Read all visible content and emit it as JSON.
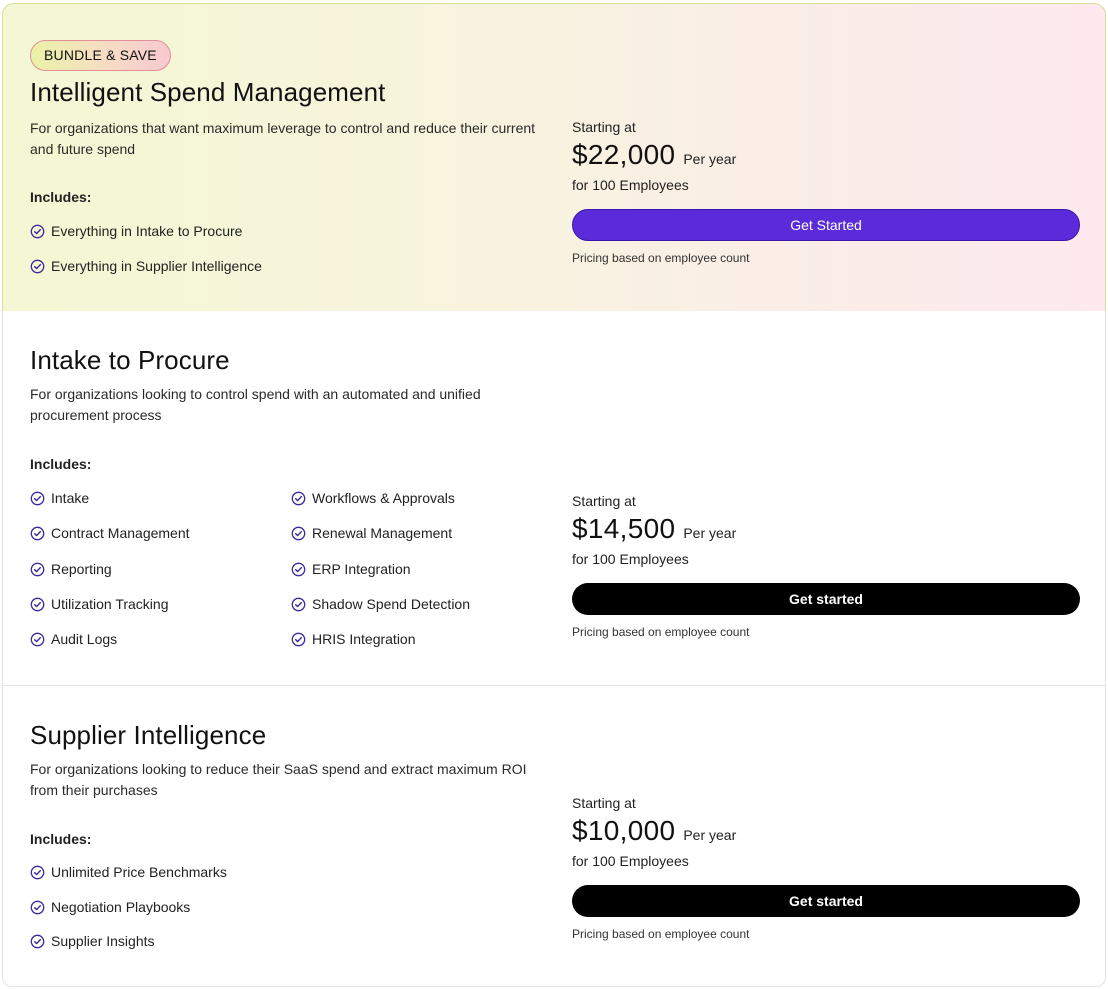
{
  "plans": [
    {
      "badge": "BUNDLE & SAVE",
      "title": "Intelligent Spend Management",
      "description": "For organizations that want maximum leverage to control and reduce their current and future spend",
      "includes_label": "Includes:",
      "features": [
        "Everything in Intake to Procure",
        "Everything in Supplier Intelligence"
      ],
      "starting_label": "Starting at",
      "price": "$22,000",
      "period": "Per year",
      "employees": "for 100 Employees",
      "button_label": "Get Started",
      "note": "Pricing based on employee count"
    },
    {
      "title": "Intake to Procure",
      "description": "For organizations looking to control spend with an automated and unified procurement process",
      "includes_label": "Includes:",
      "features": [
        "Intake",
        "Contract Management",
        "Reporting",
        "Utilization Tracking",
        "Audit Logs",
        "Workflows & Approvals",
        "Renewal Management",
        "ERP Integration",
        "Shadow Spend Detection",
        "HRIS Integration"
      ],
      "starting_label": "Starting at",
      "price": "$14,500",
      "period": "Per year",
      "employees": "for 100 Employees",
      "button_label": "Get started",
      "note": "Pricing based on employee count"
    },
    {
      "title": "Supplier Intelligence",
      "description": "For organizations looking to reduce their SaaS spend and extract maximum ROI from their purchases",
      "includes_label": "Includes:",
      "features": [
        "Unlimited Price Benchmarks",
        "Negotiation Playbooks",
        "Supplier Insights"
      ],
      "starting_label": "Starting at",
      "price": "$10,000",
      "period": "Per year",
      "employees": "for 100 Employees",
      "button_label": "Get started",
      "note": "Pricing based on employee count"
    }
  ],
  "colors": {
    "accent_purple": "#5b2bd9",
    "check_icon": "#3b2a9e",
    "button_black": "#000000"
  },
  "icons": {
    "feature": "check-circle-icon"
  }
}
